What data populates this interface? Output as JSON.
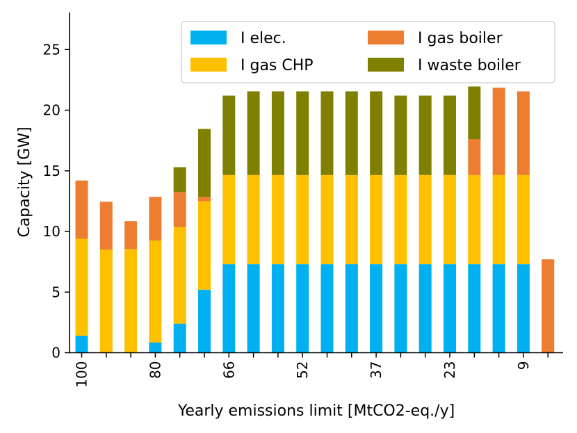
{
  "chart_data": {
    "type": "bar",
    "stacked": true,
    "xlabel": "Yearly emissions limit [MtCO2-eq./y]",
    "ylabel": "Capacity [GW]",
    "ylim": [
      0,
      28
    ],
    "yticks": [
      0,
      5,
      10,
      15,
      20,
      25
    ],
    "categories": [
      "100",
      "",
      "",
      "80",
      "",
      "",
      "66",
      "",
      "",
      "52",
      "",
      "",
      "37",
      "",
      "",
      "23",
      "",
      "",
      "9",
      ""
    ],
    "series": [
      {
        "name": "I elec.",
        "color": "#00b0f0",
        "values": [
          1.4,
          0,
          0,
          0.85,
          2.4,
          5.2,
          7.3,
          7.3,
          7.3,
          7.3,
          7.3,
          7.3,
          7.3,
          7.3,
          7.3,
          7.3,
          7.3,
          7.3,
          7.3,
          0
        ]
      },
      {
        "name": "I gas CHP",
        "color": "#ffc000",
        "values": [
          8.0,
          8.5,
          8.55,
          8.4,
          7.95,
          7.3,
          7.35,
          7.35,
          7.35,
          7.35,
          7.35,
          7.35,
          7.35,
          7.35,
          7.35,
          7.35,
          7.35,
          7.35,
          7.35,
          0
        ]
      },
      {
        "name": "I gas boiler",
        "color": "#ed7d31",
        "values": [
          4.8,
          3.95,
          2.3,
          3.6,
          2.9,
          0.35,
          0,
          0,
          0,
          0,
          0,
          0,
          0,
          0,
          0,
          0,
          2.95,
          7.2,
          6.9,
          7.7
        ]
      },
      {
        "name": "I waste boiler",
        "color": "#808000",
        "values": [
          0,
          0,
          0,
          0,
          2.05,
          5.6,
          6.55,
          6.9,
          6.9,
          6.9,
          6.9,
          6.9,
          6.9,
          6.55,
          6.55,
          6.55,
          4.35,
          0,
          0,
          0
        ]
      }
    ],
    "legend": {
      "position": "top-right",
      "columns": 2,
      "order": [
        "I elec.",
        "I gas CHP",
        "I gas boiler",
        "I waste boiler"
      ]
    }
  }
}
